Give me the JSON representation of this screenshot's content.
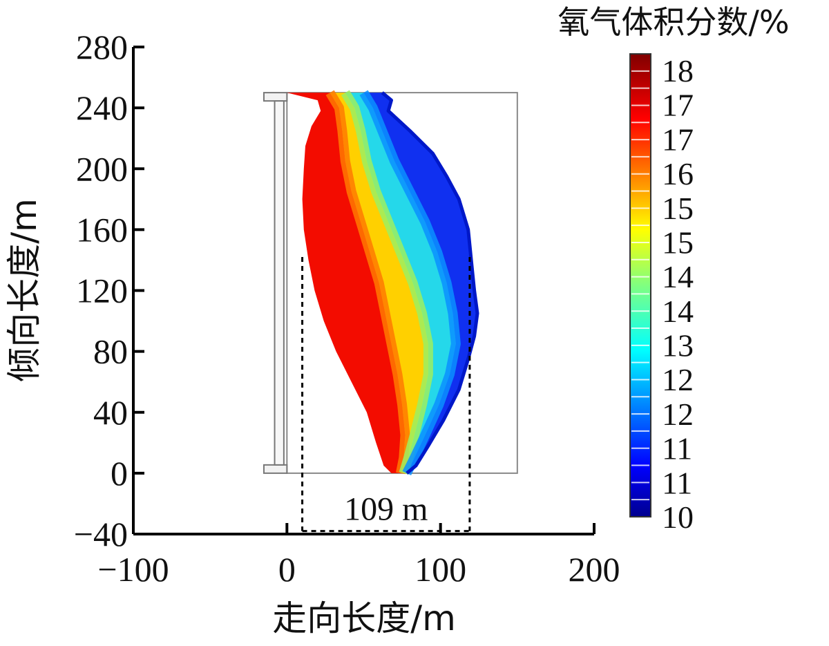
{
  "chart_data": {
    "type": "heatmap",
    "title": "",
    "xlabel": "走向长度/m",
    "ylabel": "倾向长度/m",
    "xlim": [
      -100,
      200
    ],
    "ylim": [
      -40,
      280
    ],
    "x_ticks": [
      -100,
      0,
      100,
      200
    ],
    "y_ticks": [
      -40,
      0,
      40,
      80,
      120,
      160,
      200,
      240,
      280
    ],
    "x_tick_labels": [
      "−100",
      "0",
      "100",
      "200"
    ],
    "y_tick_labels": [
      "−40",
      "0",
      "40",
      "80",
      "120",
      "160",
      "200",
      "240",
      "280"
    ],
    "colorbar": {
      "title": "氧气体积分数/%",
      "range": [
        10,
        18.5
      ],
      "tick_labels": [
        "18",
        "17",
        "17",
        "16",
        "15",
        "15",
        "14",
        "14",
        "13",
        "12",
        "12",
        "11",
        "11",
        "10"
      ],
      "colormap": "jet"
    },
    "workface_frame": {
      "x_range": [
        -15,
        150
      ],
      "y_range": [
        0,
        250
      ]
    },
    "region_outline": {
      "left": [
        [
          0,
          250
        ],
        [
          20,
          245
        ],
        [
          22,
          238
        ],
        [
          16,
          228
        ],
        [
          12,
          215
        ],
        [
          11,
          200
        ],
        [
          10,
          180
        ],
        [
          11,
          160
        ],
        [
          14,
          140
        ],
        [
          18,
          120
        ],
        [
          24,
          100
        ],
        [
          32,
          80
        ],
        [
          42,
          60
        ],
        [
          52,
          40
        ],
        [
          58,
          20
        ],
        [
          63,
          5
        ],
        [
          68,
          0
        ]
      ],
      "mid_red_yellow": [
        [
          28,
          250
        ],
        [
          34,
          240
        ],
        [
          36,
          225
        ],
        [
          38,
          205
        ],
        [
          42,
          185
        ],
        [
          48,
          165
        ],
        [
          54,
          145
        ],
        [
          60,
          125
        ],
        [
          64,
          105
        ],
        [
          68,
          85
        ],
        [
          72,
          65
        ],
        [
          75,
          45
        ],
        [
          77,
          25
        ],
        [
          76,
          10
        ],
        [
          74,
          0
        ]
      ],
      "mid_yellow_cyan": [
        [
          38,
          250
        ],
        [
          44,
          240
        ],
        [
          48,
          225
        ],
        [
          52,
          205
        ],
        [
          58,
          185
        ],
        [
          66,
          165
        ],
        [
          74,
          145
        ],
        [
          82,
          125
        ],
        [
          88,
          105
        ],
        [
          92,
          85
        ],
        [
          92,
          65
        ],
        [
          88,
          45
        ],
        [
          83,
          25
        ],
        [
          79,
          10
        ],
        [
          76,
          0
        ]
      ],
      "mid_cyan_blue": [
        [
          50,
          250
        ],
        [
          56,
          240
        ],
        [
          62,
          225
        ],
        [
          70,
          205
        ],
        [
          80,
          185
        ],
        [
          90,
          165
        ],
        [
          98,
          145
        ],
        [
          104,
          125
        ],
        [
          108,
          105
        ],
        [
          110,
          85
        ],
        [
          106,
          65
        ],
        [
          99,
          45
        ],
        [
          90,
          25
        ],
        [
          83,
          10
        ],
        [
          78,
          0
        ]
      ],
      "right": [
        [
          62,
          250
        ],
        [
          68,
          245
        ],
        [
          66,
          238
        ],
        [
          80,
          225
        ],
        [
          95,
          210
        ],
        [
          104,
          195
        ],
        [
          112,
          180
        ],
        [
          118,
          160
        ],
        [
          120,
          140
        ],
        [
          122,
          120
        ],
        [
          124,
          105
        ],
        [
          122,
          90
        ],
        [
          118,
          75
        ],
        [
          112,
          55
        ],
        [
          102,
          35
        ],
        [
          92,
          18
        ],
        [
          84,
          5
        ],
        [
          78,
          0
        ]
      ]
    },
    "annotations": [
      {
        "text": "109 m",
        "x1": 10,
        "x2": 119,
        "y_top": 142,
        "y_bottom": -38
      }
    ]
  }
}
